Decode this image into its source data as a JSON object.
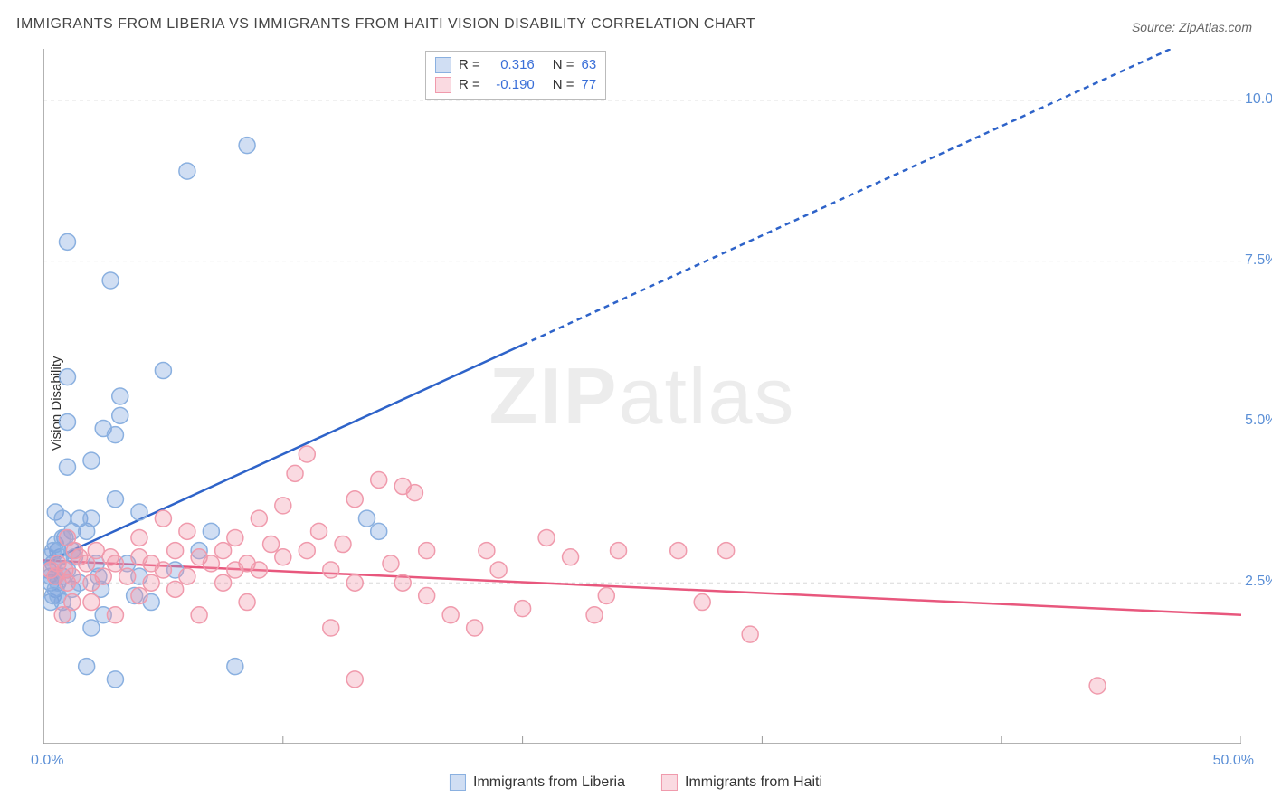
{
  "title": "IMMIGRANTS FROM LIBERIA VS IMMIGRANTS FROM HAITI VISION DISABILITY CORRELATION CHART",
  "source": "Source: ZipAtlas.com",
  "ylabel": "Vision Disability",
  "watermark_bold": "ZIP",
  "watermark_rest": "atlas",
  "chart": {
    "type": "scatter",
    "background_color": "#ffffff",
    "grid_color": "#d8d8d8",
    "axis_color": "#999999",
    "xlim": [
      0,
      50
    ],
    "ylim": [
      0,
      10.8
    ],
    "ytick_values": [
      2.5,
      5.0,
      7.5,
      10.0
    ],
    "ytick_labels": [
      "2.5%",
      "5.0%",
      "7.5%",
      "10.0%"
    ],
    "xtick_positions": [
      10,
      20,
      30,
      40,
      50
    ],
    "xtick_min_label": "0.0%",
    "xtick_max_label": "50.0%",
    "tick_label_color": "#5b8fd6",
    "marker_radius": 9,
    "marker_stroke_width": 1.5,
    "series": [
      {
        "name": "Immigrants from Liberia",
        "fill": "rgba(120,160,220,0.35)",
        "stroke": "#8ab0e0",
        "trend": {
          "solid_to_x": 20,
          "y0": 2.8,
          "slope": 0.17,
          "color": "#2e63c9",
          "width": 2.5,
          "dash": "6 5"
        },
        "points": [
          [
            0.2,
            2.7
          ],
          [
            0.3,
            2.5
          ],
          [
            0.4,
            2.8
          ],
          [
            0.5,
            2.6
          ],
          [
            0.6,
            3.0
          ],
          [
            0.5,
            2.4
          ],
          [
            0.3,
            2.2
          ],
          [
            0.8,
            2.6
          ],
          [
            0.7,
            2.9
          ],
          [
            0.4,
            2.3
          ],
          [
            0.6,
            2.5
          ],
          [
            0.5,
            3.1
          ],
          [
            0.8,
            2.2
          ],
          [
            1.0,
            2.7
          ],
          [
            0.9,
            3.2
          ],
          [
            1.2,
            2.4
          ],
          [
            1.0,
            2.0
          ],
          [
            1.3,
            2.9
          ],
          [
            1.5,
            2.5
          ],
          [
            1.2,
            3.0
          ],
          [
            0.5,
            3.6
          ],
          [
            0.8,
            3.5
          ],
          [
            1.2,
            3.3
          ],
          [
            1.5,
            3.5
          ],
          [
            1.8,
            3.3
          ],
          [
            2.0,
            3.5
          ],
          [
            2.2,
            2.8
          ],
          [
            2.3,
            2.6
          ],
          [
            2.4,
            2.4
          ],
          [
            1.0,
            4.3
          ],
          [
            2.0,
            4.4
          ],
          [
            2.5,
            4.9
          ],
          [
            3.0,
            4.8
          ],
          [
            3.2,
            5.1
          ],
          [
            3.2,
            5.4
          ],
          [
            1.0,
            5.0
          ],
          [
            5.0,
            5.8
          ],
          [
            1.0,
            5.7
          ],
          [
            2.8,
            7.2
          ],
          [
            1.0,
            7.8
          ],
          [
            8.0,
            1.2
          ],
          [
            7.0,
            3.3
          ],
          [
            4.0,
            2.6
          ],
          [
            3.5,
            2.8
          ],
          [
            4.5,
            2.2
          ],
          [
            6.0,
            8.9
          ],
          [
            8.5,
            9.3
          ],
          [
            5.5,
            2.7
          ],
          [
            6.5,
            3.0
          ],
          [
            3.8,
            2.3
          ],
          [
            1.8,
            1.2
          ],
          [
            2.0,
            1.8
          ],
          [
            3.0,
            1.0
          ],
          [
            2.5,
            2.0
          ],
          [
            3.0,
            3.8
          ],
          [
            4.0,
            3.6
          ],
          [
            13.5,
            3.5
          ],
          [
            14.0,
            3.3
          ],
          [
            0.2,
            2.9
          ],
          [
            0.3,
            2.6
          ],
          [
            0.4,
            3.0
          ],
          [
            0.6,
            2.3
          ],
          [
            0.8,
            3.2
          ]
        ]
      },
      {
        "name": "Immigrants from Haiti",
        "fill": "rgba(240,150,170,0.35)",
        "stroke": "#f09aac",
        "trend": {
          "y0": 2.85,
          "slope": -0.017,
          "color": "#e8577d",
          "width": 2.5
        },
        "points": [
          [
            0.3,
            2.7
          ],
          [
            0.5,
            2.6
          ],
          [
            0.6,
            2.8
          ],
          [
            0.9,
            2.7
          ],
          [
            1.0,
            2.5
          ],
          [
            1.2,
            2.6
          ],
          [
            1.5,
            2.9
          ],
          [
            1.8,
            2.8
          ],
          [
            2.0,
            2.5
          ],
          [
            2.2,
            3.0
          ],
          [
            2.5,
            2.6
          ],
          [
            2.8,
            2.9
          ],
          [
            3.0,
            2.8
          ],
          [
            3.5,
            2.6
          ],
          [
            4.0,
            2.9
          ],
          [
            4.5,
            2.8
          ],
          [
            5.0,
            2.7
          ],
          [
            5.5,
            3.0
          ],
          [
            6.0,
            2.6
          ],
          [
            6.5,
            2.9
          ],
          [
            7.0,
            2.8
          ],
          [
            7.5,
            3.0
          ],
          [
            8.0,
            2.7
          ],
          [
            8.5,
            2.8
          ],
          [
            9.0,
            2.7
          ],
          [
            9.5,
            3.1
          ],
          [
            10.0,
            2.9
          ],
          [
            10.0,
            3.7
          ],
          [
            10.5,
            4.2
          ],
          [
            11.0,
            3.0
          ],
          [
            11.5,
            3.3
          ],
          [
            12.0,
            2.7
          ],
          [
            12.5,
            3.1
          ],
          [
            11.0,
            4.5
          ],
          [
            13.0,
            3.8
          ],
          [
            14.0,
            4.1
          ],
          [
            15.0,
            4.0
          ],
          [
            15.5,
            3.9
          ],
          [
            16.0,
            3.0
          ],
          [
            13.0,
            2.5
          ],
          [
            14.5,
            2.8
          ],
          [
            12.0,
            1.8
          ],
          [
            13.0,
            1.0
          ],
          [
            16.0,
            2.3
          ],
          [
            17.0,
            2.0
          ],
          [
            18.0,
            1.8
          ],
          [
            18.5,
            3.0
          ],
          [
            19.0,
            2.7
          ],
          [
            20.0,
            2.1
          ],
          [
            21.0,
            3.2
          ],
          [
            22.0,
            2.9
          ],
          [
            23.0,
            2.0
          ],
          [
            24.0,
            3.0
          ],
          [
            23.5,
            2.3
          ],
          [
            26.5,
            3.0
          ],
          [
            27.5,
            2.2
          ],
          [
            28.5,
            3.0
          ],
          [
            29.5,
            1.7
          ],
          [
            2.0,
            2.2
          ],
          [
            3.0,
            2.0
          ],
          [
            4.0,
            2.3
          ],
          [
            4.5,
            2.5
          ],
          [
            5.0,
            3.5
          ],
          [
            6.0,
            3.3
          ],
          [
            8.0,
            3.2
          ],
          [
            8.5,
            2.2
          ],
          [
            7.5,
            2.5
          ],
          [
            5.5,
            2.4
          ],
          [
            4.0,
            3.2
          ],
          [
            1.0,
            3.2
          ],
          [
            1.3,
            3.0
          ],
          [
            1.2,
            2.2
          ],
          [
            0.8,
            2.0
          ],
          [
            44.0,
            0.9
          ],
          [
            6.5,
            2.0
          ],
          [
            9.0,
            3.5
          ],
          [
            15.0,
            2.5
          ]
        ]
      }
    ]
  },
  "legend_top": [
    {
      "r_label": "R =",
      "r_value": "0.316",
      "n_label": "N =",
      "n_value": "63",
      "swatch_fill": "rgba(120,160,220,0.35)",
      "swatch_stroke": "#8ab0e0"
    },
    {
      "r_label": "R =",
      "r_value": "-0.190",
      "n_label": "N =",
      "n_value": "77",
      "swatch_fill": "rgba(240,150,170,0.35)",
      "swatch_stroke": "#f09aac"
    }
  ],
  "legend_bottom": [
    {
      "label": "Immigrants from Liberia",
      "swatch_fill": "rgba(120,160,220,0.35)",
      "swatch_stroke": "#8ab0e0"
    },
    {
      "label": "Immigrants from Haiti",
      "swatch_fill": "rgba(240,150,170,0.35)",
      "swatch_stroke": "#f09aac"
    }
  ]
}
